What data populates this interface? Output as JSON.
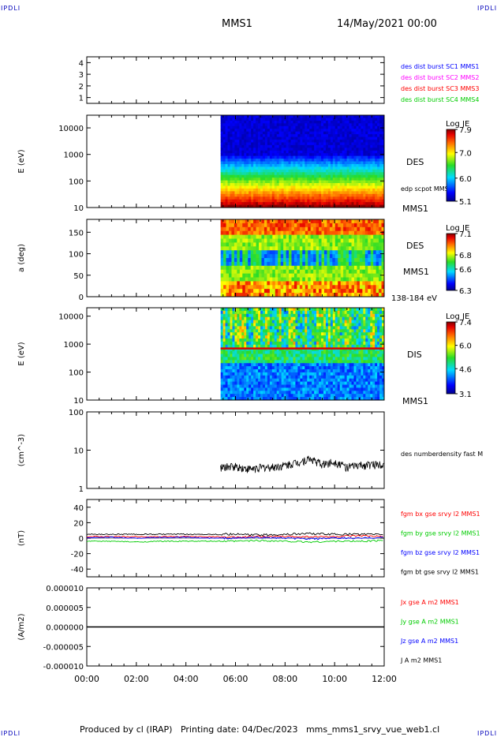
{
  "page": {
    "corner_left": "IPDLI",
    "corner_right": "IPDLI",
    "title": "MMS1",
    "date": "14/May/2021 00:00",
    "footer": "Produced by cl (IRAP)   Printing date: 04/Dec/2023   mms_mms1_srvy_vue_web1.cl"
  },
  "colors": {
    "blue": "#0000ff",
    "magenta": "#ff00ff",
    "red": "#ff0000",
    "green": "#00cc00",
    "black": "#000000",
    "corner": "#0000bb"
  },
  "chart_data": [
    {
      "type": "line",
      "panel": "spacecraft-availability",
      "xlabel": "",
      "ylabel": "",
      "ylim": [
        0.5,
        4.5
      ],
      "yticks": [
        "1",
        "2",
        "3",
        "4"
      ],
      "series": [
        {
          "name": "des dist burst SC1 MMS1",
          "color": "blue",
          "values": []
        },
        {
          "name": "des dist burst SC2 MMS2",
          "color": "magenta",
          "values": []
        },
        {
          "name": "des dist burst SC3 MMS3",
          "color": "red",
          "values": []
        },
        {
          "name": "des dist burst SC4 MMS4",
          "color": "green",
          "values": []
        }
      ]
    },
    {
      "type": "heatmap",
      "panel": "des-energy-spectrogram",
      "ylabel": "E (eV)",
      "yscale": "log",
      "ylim": [
        10,
        30000
      ],
      "yticks": [
        "10",
        "100",
        "1000",
        "10000"
      ],
      "data_start_hour": 5.4,
      "data_end_hour": 12.0,
      "labels": [
        "DES",
        "edp scpot MMS1",
        "MMS1"
      ],
      "colorbar": {
        "title": "Log JE",
        "ticks": [
          "7.9",
          "7.0",
          "6.0",
          "5.1"
        ],
        "min": 5.1,
        "max": 7.9
      }
    },
    {
      "type": "heatmap",
      "panel": "des-pitch-angle",
      "ylabel": "a (deg)",
      "ylim": [
        0,
        180
      ],
      "yticks": [
        "0",
        "50",
        "100",
        "150"
      ],
      "data_start_hour": 5.4,
      "data_end_hour": 12.0,
      "labels": [
        "DES",
        "MMS1",
        "138-184 eV"
      ],
      "colorbar": {
        "title": "Log JE",
        "ticks": [
          "7.1",
          "6.8",
          "6.6",
          "6.3"
        ],
        "min": 6.3,
        "max": 7.1
      }
    },
    {
      "type": "heatmap",
      "panel": "dis-energy-spectrogram",
      "ylabel": "E (eV)",
      "yscale": "log",
      "ylim": [
        10,
        20000
      ],
      "yticks": [
        "10",
        "100",
        "1000",
        "10000"
      ],
      "data_start_hour": 5.4,
      "data_end_hour": 12.0,
      "labels": [
        "DIS",
        "MMS1"
      ],
      "colorbar": {
        "title": "Log JE",
        "ticks": [
          "7.4",
          "6.0",
          "4.6",
          "3.1"
        ],
        "min": 3.1,
        "max": 7.4
      }
    },
    {
      "type": "line",
      "panel": "number-density",
      "ylabel": "(cm^-3)",
      "yscale": "log",
      "ylim": [
        1,
        100
      ],
      "yticks": [
        "1",
        "10",
        "100"
      ],
      "series": [
        {
          "name": "des numberdensity fast M",
          "color": "black",
          "x": [
            5.4,
            6.0,
            6.5,
            7.0,
            7.5,
            8.0,
            8.5,
            9.0,
            9.5,
            10.0,
            10.5,
            11.0,
            11.5,
            12.0
          ],
          "values": [
            3.5,
            3.8,
            3.2,
            3.5,
            3.6,
            4.0,
            4.8,
            6.0,
            4.2,
            5.0,
            3.6,
            4.0,
            4.2,
            4.5
          ]
        }
      ]
    },
    {
      "type": "line",
      "panel": "magnetic-field",
      "ylabel": "(nT)",
      "ylim": [
        -50,
        50
      ],
      "yticks": [
        "-40",
        "-20",
        "0",
        "20",
        "40"
      ],
      "x": [
        0,
        1,
        2,
        3,
        4,
        5,
        6,
        7,
        8,
        9,
        10,
        11,
        12
      ],
      "series": [
        {
          "name": "fgm bx gse srvy l2 MMS1",
          "color": "red",
          "values": [
            2,
            2,
            2,
            2,
            2,
            2,
            1,
            2,
            2,
            2,
            2,
            3,
            2
          ]
        },
        {
          "name": "fgm by gse srvy l2 MMS1",
          "color": "green",
          "values": [
            -4,
            -4,
            -5,
            -4,
            -4,
            -4,
            -4,
            -3,
            -4,
            -5,
            -4,
            -4,
            -3
          ]
        },
        {
          "name": "fgm bz gse srvy l2 MMS1",
          "color": "blue",
          "values": [
            1,
            1,
            0,
            1,
            1,
            0,
            0,
            1,
            0,
            -1,
            0,
            0,
            1
          ]
        },
        {
          "name": "fgm bt gse srvy l2 MMS1",
          "color": "black",
          "values": [
            5,
            5,
            5,
            5,
            5,
            5,
            5,
            4,
            5,
            6,
            5,
            5,
            5
          ]
        }
      ]
    },
    {
      "type": "line",
      "panel": "current-density",
      "ylabel": "(A/m2)",
      "ylim": [
        -1e-05,
        1e-05
      ],
      "yticks": [
        "-0.000010",
        "-0.000005",
        "0.000000",
        "0.000005",
        "0.000010"
      ],
      "x": [
        0,
        12
      ],
      "series": [
        {
          "name": "Jx gse A m2 MMS1",
          "color": "red",
          "values": [
            0,
            0
          ]
        },
        {
          "name": "Jy gse A m2 MMS1",
          "color": "green",
          "values": [
            0,
            0
          ]
        },
        {
          "name": "Jz gse A m2 MMS1",
          "color": "blue",
          "values": [
            0,
            0
          ]
        },
        {
          "name": "J A m2 MMS1",
          "color": "black",
          "values": [
            0,
            0
          ]
        }
      ]
    }
  ],
  "xaxis": {
    "ticks": [
      "00:00",
      "02:00",
      "04:00",
      "06:00",
      "08:00",
      "10:00",
      "12:00"
    ],
    "xlim": [
      0,
      12
    ]
  }
}
